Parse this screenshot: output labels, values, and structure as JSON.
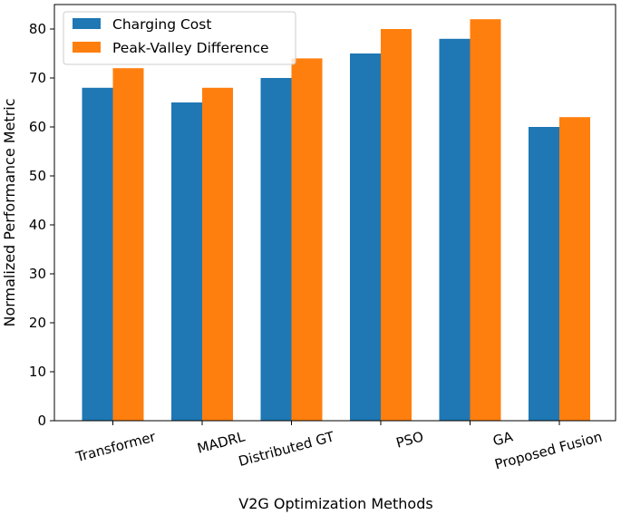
{
  "chart_data": {
    "type": "bar",
    "title": "",
    "xlabel": "V2G Optimization Methods",
    "ylabel": "Normalized Performance Metric",
    "categories": [
      "Transformer",
      "MADRL",
      "Distributed GT",
      "PSO",
      "GA",
      "Proposed Fusion"
    ],
    "series": [
      {
        "name": "Charging Cost",
        "values": [
          68,
          65,
          70,
          75,
          78,
          60
        ],
        "color": "#1f77b4"
      },
      {
        "name": "Peak-Valley Difference",
        "values": [
          72,
          68,
          74,
          80,
          82,
          62
        ],
        "color": "#ff7f0e"
      }
    ],
    "ylim": [
      0,
      85
    ],
    "yticks": [
      0,
      10,
      20,
      30,
      40,
      50,
      60,
      70,
      80
    ],
    "grid": false,
    "legend_position": "top-left",
    "xtick_rotation": "slanted"
  }
}
